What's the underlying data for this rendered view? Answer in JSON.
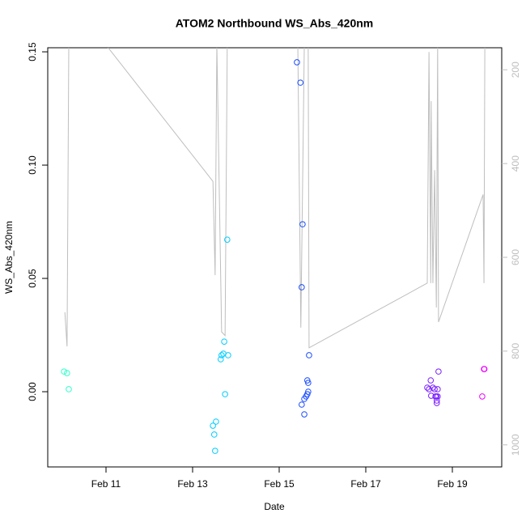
{
  "chart_data": {
    "type": "scatter",
    "title": "ATOM2 Northbound WS_Abs_420nm",
    "x_label": "Date",
    "y_label": "WS_Abs_420nm",
    "xlim": [
      9.654,
      20.14
    ],
    "xticks": [
      {
        "value": 11,
        "label": "Feb 11"
      },
      {
        "value": 13,
        "label": "Feb 13"
      },
      {
        "value": 15,
        "label": "Feb 15"
      },
      {
        "value": 17,
        "label": "Feb 17"
      },
      {
        "value": 19,
        "label": "Feb 19"
      }
    ],
    "ylim": [
      -0.0332,
      0.1518
    ],
    "yticks": [
      {
        "value": 0,
        "label": "0.00"
      },
      0.05,
      {
        "value": 0.1,
        "label": "0.10"
      },
      0.15
    ],
    "y2lim": [
      1047,
      153
    ],
    "y2ticks": [
      200,
      400,
      600,
      800,
      1000
    ],
    "y2_color": "#bebebe",
    "series": [
      {
        "color": "#33ffcc",
        "x": [
          10.03,
          10.1,
          10.14
        ],
        "values": [
          0.0089,
          0.0082,
          0.0011
        ]
      },
      {
        "color": "#00ccff",
        "x": [
          13.8,
          13.73,
          13.71,
          13.67,
          13.82,
          13.65,
          13.75,
          13.54,
          13.47,
          13.5,
          13.52
        ],
        "values": [
          0.0671,
          0.0221,
          0.0168,
          0.0161,
          0.0161,
          0.0143,
          -0.0011,
          -0.0132,
          -0.015,
          -0.0189,
          -0.0261
        ]
      },
      {
        "color": "#1a4cff",
        "x": [
          15.41,
          15.49,
          15.54,
          15.52,
          15.69,
          15.65,
          15.67,
          15.67,
          15.65,
          15.62,
          15.58,
          15.52,
          15.58
        ],
        "values": [
          0.1454,
          0.1364,
          0.0739,
          0.0461,
          0.0161,
          0.005,
          0.0039,
          0,
          -0.0011,
          -0.0021,
          -0.0032,
          -0.0057,
          -0.01
        ]
      },
      {
        "color": "#7a1fff",
        "x": [
          18.68,
          18.5,
          18.42,
          18.55,
          18.46,
          18.59,
          18.66,
          18.51,
          18.61,
          18.63,
          18.66,
          18.64,
          18.64
        ],
        "values": [
          0.0089,
          0.005,
          0.0018,
          0.0018,
          0.0011,
          0.0011,
          0.0011,
          -0.0018,
          -0.0021,
          -0.0021,
          -0.0021,
          -0.0039,
          -0.005
        ]
      },
      {
        "color": "#ee00ff",
        "x": [
          19.73,
          19.74,
          19.69
        ],
        "values": [
          0.01,
          0.01,
          -0.0021
        ]
      },
      {
        "type": "line",
        "axis": "y2",
        "color": "#bebebe",
        "x": [
          10.05,
          10.1,
          10.14,
          11.0,
          13.47,
          13.52,
          13.56,
          13.67,
          13.75,
          13.8,
          15.43,
          15.5,
          15.58,
          15.67,
          15.69,
          18.42,
          18.46,
          18.5,
          18.51,
          18.55,
          18.59,
          18.63,
          18.66,
          18.68,
          19.71,
          19.73,
          19.75
        ],
        "values": [
          717,
          790,
          147,
          147,
          438,
          638,
          147,
          759,
          767,
          147,
          147,
          750,
          147,
          147,
          793,
          655,
          162,
          655,
          267,
          655,
          414,
          707,
          147,
          738,
          466,
          655,
          147
        ]
      }
    ]
  }
}
